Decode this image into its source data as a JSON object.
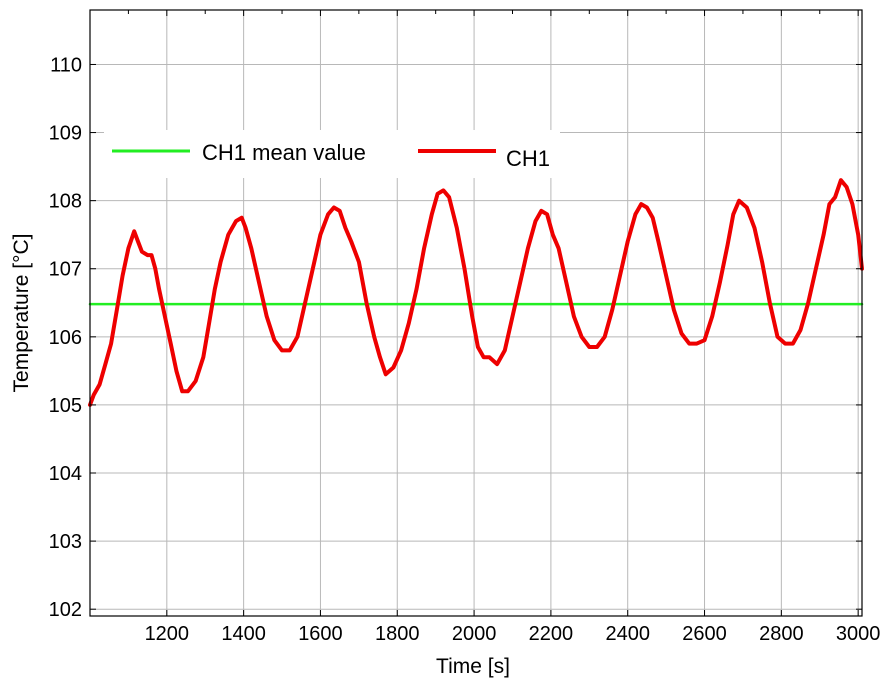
{
  "chart_data": {
    "type": "line",
    "title": "",
    "xlabel": "Time [s]",
    "ylabel": "Temperature [°C]",
    "xlim": [
      1000,
      3010
    ],
    "ylim": [
      101.9,
      110.8
    ],
    "x_ticks": [
      1200,
      1400,
      1600,
      1800,
      2000,
      2200,
      2400,
      2600,
      2800,
      3000
    ],
    "y_ticks": [
      102,
      103,
      104,
      105,
      106,
      107,
      108,
      109,
      110
    ],
    "x_tick_labels": [
      "1200",
      "1400",
      "1600",
      "1800",
      "2000",
      "2200",
      "2400",
      "2600",
      "2800",
      "3000"
    ],
    "y_tick_labels": [
      "102",
      "103",
      "104",
      "105",
      "106",
      "107",
      "108",
      "109",
      "110"
    ],
    "grid": true,
    "legend_placement": "upper-left",
    "legend": [
      "CH1 mean value",
      "CH1"
    ],
    "series": [
      {
        "name": "CH1 mean value",
        "color": "#22ee22",
        "x": [
          1000,
          3010
        ],
        "y": [
          106.48,
          106.48
        ]
      },
      {
        "name": "CH1",
        "color": "#ee0000",
        "x": [
          1000,
          1010,
          1025,
          1040,
          1055,
          1070,
          1085,
          1100,
          1115,
          1125,
          1135,
          1150,
          1160,
          1170,
          1180,
          1195,
          1210,
          1225,
          1240,
          1255,
          1275,
          1295,
          1310,
          1325,
          1340,
          1360,
          1380,
          1395,
          1405,
          1420,
          1440,
          1460,
          1480,
          1500,
          1520,
          1540,
          1560,
          1580,
          1600,
          1620,
          1635,
          1650,
          1665,
          1680,
          1700,
          1720,
          1740,
          1755,
          1770,
          1790,
          1810,
          1830,
          1850,
          1870,
          1890,
          1905,
          1920,
          1935,
          1955,
          1975,
          1995,
          2010,
          2025,
          2040,
          2060,
          2080,
          2100,
          2120,
          2140,
          2160,
          2175,
          2190,
          2205,
          2220,
          2240,
          2260,
          2280,
          2300,
          2320,
          2340,
          2360,
          2380,
          2400,
          2420,
          2435,
          2450,
          2465,
          2480,
          2500,
          2520,
          2540,
          2560,
          2580,
          2600,
          2620,
          2640,
          2660,
          2675,
          2690,
          2710,
          2730,
          2750,
          2770,
          2790,
          2810,
          2830,
          2850,
          2870,
          2890,
          2910,
          2925,
          2940,
          2955,
          2970,
          2985,
          3000,
          3010
        ],
        "y": [
          105.0,
          105.15,
          105.3,
          105.6,
          105.9,
          106.4,
          106.9,
          107.3,
          107.55,
          107.4,
          107.25,
          107.2,
          107.2,
          107.0,
          106.7,
          106.3,
          105.9,
          105.5,
          105.2,
          105.2,
          105.35,
          105.7,
          106.2,
          106.7,
          107.1,
          107.5,
          107.7,
          107.75,
          107.6,
          107.3,
          106.8,
          106.3,
          105.95,
          105.8,
          105.8,
          106.0,
          106.5,
          107.0,
          107.5,
          107.8,
          107.9,
          107.85,
          107.6,
          107.4,
          107.1,
          106.5,
          106.0,
          105.7,
          105.45,
          105.55,
          105.8,
          106.2,
          106.7,
          107.3,
          107.8,
          108.1,
          108.15,
          108.05,
          107.6,
          107.0,
          106.3,
          105.85,
          105.7,
          105.7,
          105.6,
          105.8,
          106.3,
          106.8,
          107.3,
          107.7,
          107.85,
          107.8,
          107.5,
          107.3,
          106.8,
          106.3,
          106.0,
          105.85,
          105.85,
          106.0,
          106.4,
          106.9,
          107.4,
          107.8,
          107.95,
          107.9,
          107.75,
          107.4,
          106.9,
          106.4,
          106.05,
          105.9,
          105.9,
          105.95,
          106.3,
          106.8,
          107.35,
          107.8,
          108.0,
          107.9,
          107.6,
          107.1,
          106.5,
          106.0,
          105.9,
          105.9,
          106.1,
          106.5,
          107.0,
          107.5,
          107.95,
          108.05,
          108.3,
          108.2,
          107.95,
          107.5,
          107.0
        ]
      }
    ]
  }
}
